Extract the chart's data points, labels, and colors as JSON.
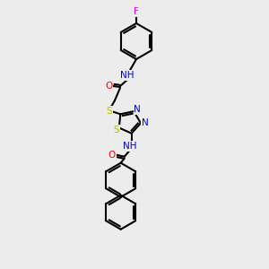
{
  "bg_color": "#ececec",
  "bond_color": "#000000",
  "atom_colors": {
    "N": "#0000dd",
    "O": "#ff0000",
    "S": "#bbbb00",
    "F": "#ee00ee",
    "C": "#000000"
  },
  "bond_lw": 1.5,
  "font_size": 7.5
}
